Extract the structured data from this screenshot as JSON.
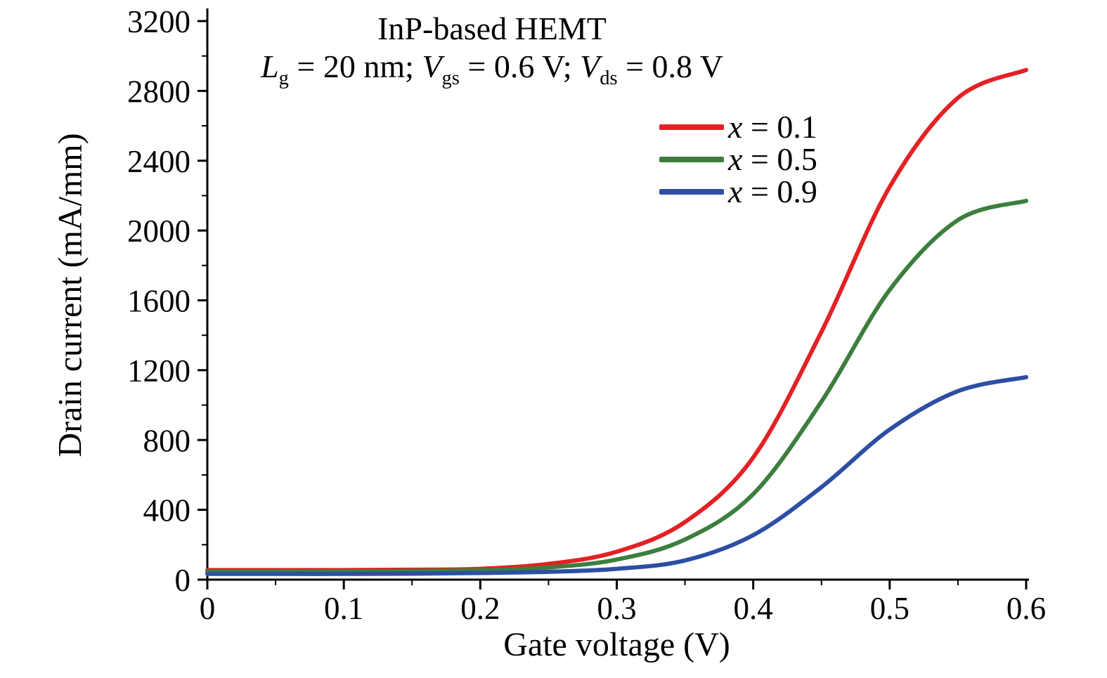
{
  "chart_data": {
    "type": "line",
    "title": "InP-based HEMT",
    "subtitle_parts": [
      {
        "t": "L",
        "i": true
      },
      {
        "t": "g",
        "sub": true
      },
      {
        "t": " = 20 nm;  "
      },
      {
        "t": "V",
        "i": true
      },
      {
        "t": "gs",
        "sub": true
      },
      {
        "t": " = 0.6 V;  "
      },
      {
        "t": "V",
        "i": true
      },
      {
        "t": "ds",
        "sub": true
      },
      {
        "t": " = 0.8 V"
      }
    ],
    "xlabel": "Gate voltage (V)",
    "ylabel": "Drain current (mA/mm)",
    "xlim": [
      0,
      0.6
    ],
    "ylim": [
      0,
      3200
    ],
    "grid": false,
    "legend_position": "upper-right-inside",
    "axis_color": "#000000",
    "x_ticks": [
      {
        "v": 0.0,
        "label": "0"
      },
      {
        "v": 0.1,
        "label": "0.1"
      },
      {
        "v": 0.2,
        "label": "0.2"
      },
      {
        "v": 0.3,
        "label": "0.3"
      },
      {
        "v": 0.4,
        "label": "0.4"
      },
      {
        "v": 0.5,
        "label": "0.5"
      },
      {
        "v": 0.6,
        "label": "0.6"
      }
    ],
    "y_ticks": [
      {
        "v": 0,
        "label": "0"
      },
      {
        "v": 400,
        "label": "400"
      },
      {
        "v": 800,
        "label": "800"
      },
      {
        "v": 1200,
        "label": "1200"
      },
      {
        "v": 1600,
        "label": "1600"
      },
      {
        "v": 2000,
        "label": "2000"
      },
      {
        "v": 2400,
        "label": "2400"
      },
      {
        "v": 2800,
        "label": "2800"
      },
      {
        "v": 3200,
        "label": "3200"
      }
    ],
    "x_minor_ticks": [
      0.05,
      0.15,
      0.25,
      0.35,
      0.45,
      0.55
    ],
    "y_minor_ticks": [
      200,
      600,
      1000,
      1400,
      1800,
      2200,
      2600,
      3000
    ],
    "x": [
      0.0,
      0.05,
      0.1,
      0.15,
      0.2,
      0.25,
      0.3,
      0.35,
      0.4,
      0.45,
      0.5,
      0.55,
      0.6
    ],
    "series": [
      {
        "name": "x = 0.1",
        "legend_var": "x",
        "legend_rest": " = 0.1",
        "color": "#e32124",
        "values": [
          55,
          55,
          55,
          57,
          62,
          90,
          160,
          330,
          700,
          1420,
          2250,
          2760,
          2920
        ]
      },
      {
        "name": "x = 0.5",
        "legend_var": "x",
        "legend_rest": " = 0.5",
        "color": "#3c7e3e",
        "values": [
          48,
          48,
          48,
          50,
          54,
          70,
          115,
          230,
          490,
          1020,
          1660,
          2060,
          2170
        ]
      },
      {
        "name": "x = 0.9",
        "legend_var": "x",
        "legend_rest": " = 0.9",
        "color": "#2d4ea3",
        "values": [
          33,
          33,
          33,
          34,
          38,
          45,
          62,
          110,
          255,
          530,
          860,
          1080,
          1160
        ]
      }
    ]
  }
}
